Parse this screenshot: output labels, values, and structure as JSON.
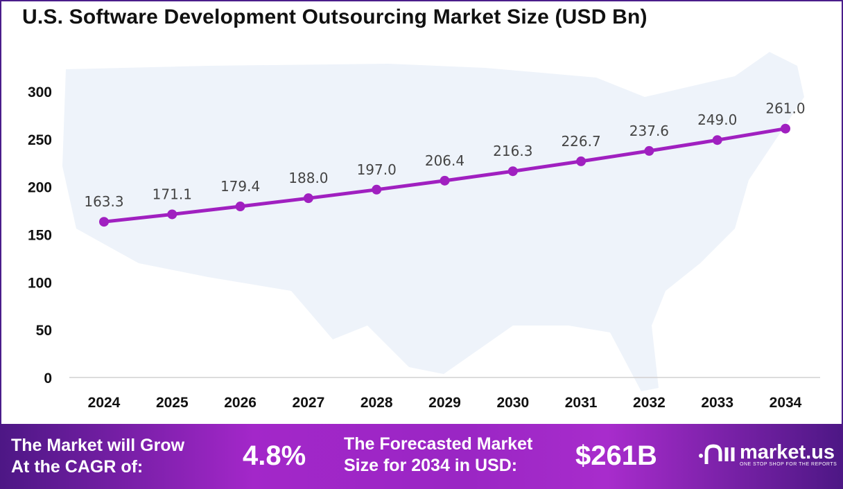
{
  "chart_data": {
    "type": "line",
    "title": "U.S. Software Development Outsourcing Market Size (USD Bn)",
    "categories": [
      "2024",
      "2025",
      "2026",
      "2027",
      "2028",
      "2029",
      "2030",
      "2031",
      "2032",
      "2033",
      "2034"
    ],
    "values": [
      163.3,
      171.1,
      179.4,
      188.0,
      197.0,
      206.4,
      216.3,
      226.7,
      237.6,
      249.0,
      261.0
    ],
    "value_labels": [
      "163.3",
      "171.1",
      "179.4",
      "188.0",
      "197.0",
      "206.4",
      "216.3",
      "226.7",
      "237.6",
      "249.0",
      "261.0"
    ],
    "ylim": [
      0,
      300
    ],
    "yticks": [
      "0",
      "50",
      "100",
      "150",
      "200",
      "250",
      "300"
    ],
    "grid": false,
    "line_color": "#a020c0"
  },
  "banner": {
    "cagr_label": [
      "The Market will Grow",
      "At the CAGR of:"
    ],
    "cagr_value": "4.8%",
    "forecast_label": [
      "The Forecasted Market",
      "Size for 2034 in USD:"
    ],
    "forecast_value": "$261B",
    "logo_name": "market.us",
    "logo_tagline": "ONE STOP SHOP FOR THE REPORTS"
  }
}
